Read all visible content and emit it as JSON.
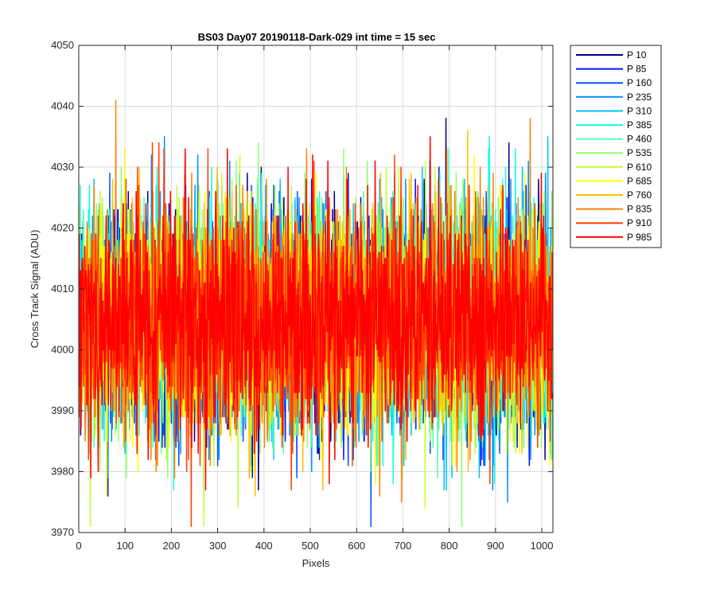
{
  "chart_data": {
    "type": "line",
    "title": "BS03 Day07 20190118-Dark-029 int time = 15 sec",
    "xlabel": "Pixels",
    "ylabel": "Cross Track Signal (ADU)",
    "xlim": [
      0,
      1024
    ],
    "ylim": [
      3970,
      4050
    ],
    "xticks": [
      0,
      100,
      200,
      300,
      400,
      500,
      600,
      700,
      800,
      900,
      1000
    ],
    "yticks": [
      3970,
      3980,
      3990,
      4000,
      4010,
      4020,
      4030,
      4040,
      4050
    ],
    "grid": true,
    "legend_position": "outside-top-right",
    "noise": {
      "points_per_series": 1024,
      "mean": 4005,
      "spread": 9
    },
    "series": [
      {
        "name": "P 10",
        "color": "#00008f"
      },
      {
        "name": "P 85",
        "color": "#0010ff"
      },
      {
        "name": "P 160",
        "color": "#0050ff"
      },
      {
        "name": "P 235",
        "color": "#0090ff"
      },
      {
        "name": "P 310",
        "color": "#00c0ff"
      },
      {
        "name": "P 385",
        "color": "#10ffef"
      },
      {
        "name": "P 460",
        "color": "#50ffaf"
      },
      {
        "name": "P 535",
        "color": "#90ff6f"
      },
      {
        "name": "P 610",
        "color": "#c0ff30"
      },
      {
        "name": "P 685",
        "color": "#ffff00"
      },
      {
        "name": "P 760",
        "color": "#ffc000"
      },
      {
        "name": "P 835",
        "color": "#ff8000"
      },
      {
        "name": "P 910",
        "color": "#ff4000"
      },
      {
        "name": "P 985",
        "color": "#ff0000"
      }
    ]
  }
}
